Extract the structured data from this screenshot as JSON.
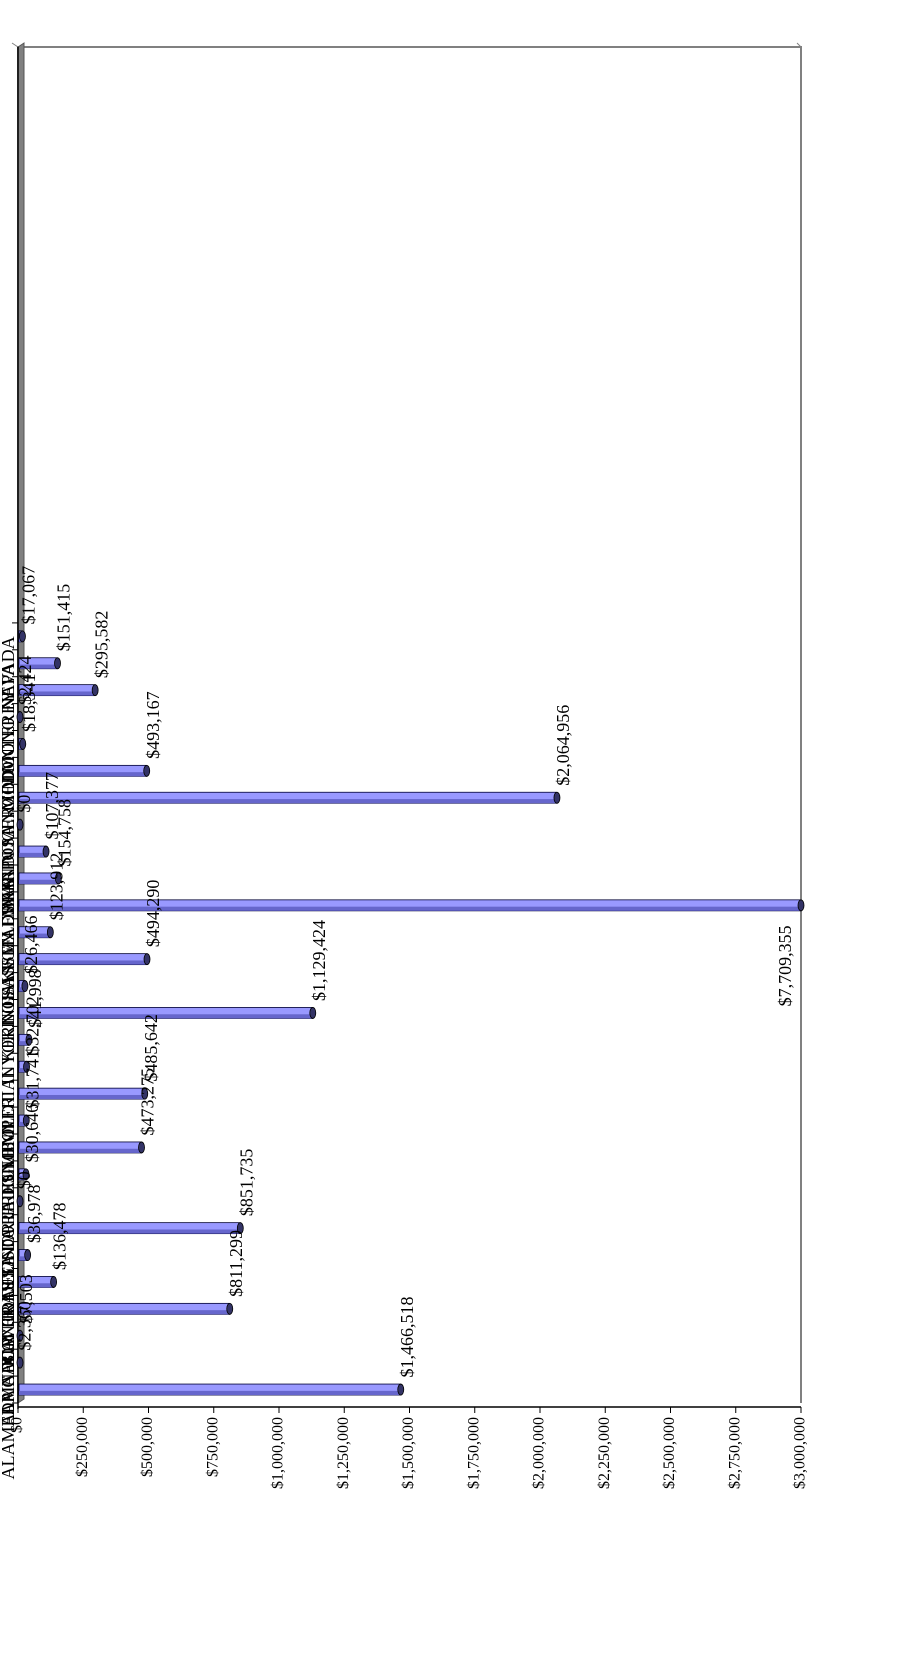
{
  "colors": {
    "bar_fill": "#9999ff",
    "bar_shade": "#6666cc",
    "bar_top": "#333366",
    "axis": "#000000",
    "plot_border": "#808080",
    "floor": "#808080"
  },
  "chart_data": {
    "type": "bar",
    "orientation": "horizontal",
    "rotated_page": true,
    "title": "",
    "xlabel": "",
    "ylabel": "",
    "grid": false,
    "legend": "none",
    "ylim": [
      0,
      3000000
    ],
    "tick_labels": [
      "$0",
      "$250,000",
      "$500,000",
      "$750,000",
      "$1,000,000",
      "$1,250,000",
      "$1,500,000",
      "$1,750,000",
      "$2,000,000",
      "$2,250,000",
      "$2,500,000",
      "$2,750,000",
      "$3,000,000"
    ],
    "tick_values": [
      0,
      250000,
      500000,
      750000,
      1000000,
      1250000,
      1500000,
      1750000,
      2000000,
      2250000,
      2500000,
      2750000,
      3000000
    ],
    "categories": [
      "ALAMEDA",
      "ALPINE",
      "AMADOR",
      "BUTTE",
      "CALAVERAS",
      "COLUSA",
      "CONTRA COSTA",
      "DEL NORTE",
      "EL DORADO",
      "FRESNO",
      "GLENN",
      "HUMBOLDT",
      "IMPERIAL",
      "INYO",
      "KERN",
      "KINGS",
      "LAKE",
      "LASSEN",
      "LOS ANGELES",
      "MADERA",
      "MARIN",
      "MARIPOSA",
      "MENDOCINO",
      "MERCED",
      "MODOC",
      "MONO",
      "MONTEREY",
      "NAPA",
      "NEVADA"
    ],
    "values": [
      1466518,
      2360,
      7503,
      811299,
      136478,
      36978,
      851735,
      0,
      30646,
      473275,
      31741,
      485642,
      32702,
      41998,
      1129424,
      26466,
      494290,
      123912,
      7709355,
      154758,
      107377,
      0,
      2064956,
      493167,
      18341,
      2424,
      295582,
      151415,
      17067
    ],
    "data_labels": [
      "$1,466,518",
      "$2,360",
      "$7,503",
      "$811,299",
      "$136,478",
      "$36,978",
      "$851,735",
      "$0",
      "$30,646",
      "$473,275",
      "$31,741",
      "$485,642",
      "$32,702",
      "$41,998",
      "$1,129,424",
      "$26,466",
      "$494,290",
      "$123,912",
      "$7,709,355",
      "$154,758",
      "$107,377",
      "$0",
      "$2,064,956",
      "$493,167",
      "$18,341",
      "$2,424",
      "$295,582",
      "$151,415",
      "$17,067"
    ],
    "clipped_at_axis_max": [
      "LOS ANGELES"
    ]
  }
}
